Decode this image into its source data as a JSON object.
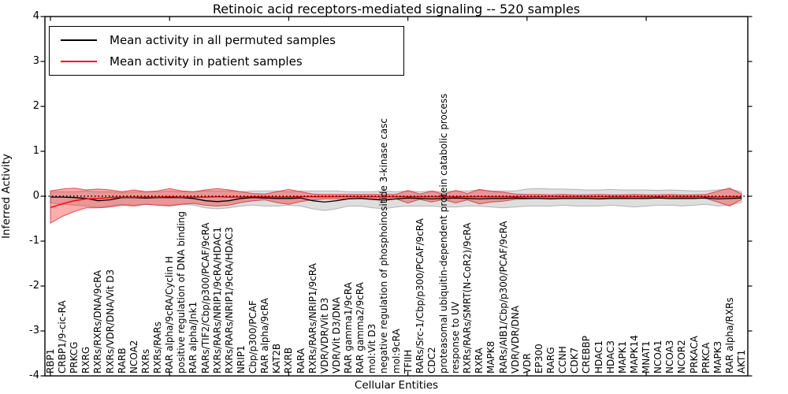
{
  "figure": {
    "title": "Retinoic acid receptors-mediated signaling -- 520 samples",
    "xlabel": "Cellular Entities",
    "ylabel": "Inferred Activity"
  },
  "legend": {
    "items": [
      {
        "label": "Mean activity in all permuted samples",
        "color": "#000000"
      },
      {
        "label": "Mean activity in patient samples",
        "color": "#ff0000"
      }
    ],
    "position": "upper left"
  },
  "colors": {
    "permuted_line": "#000000",
    "patient_line": "#ff0000",
    "permuted_band_fill": "rgba(0,0,0,0.13)",
    "permuted_band_edge": "rgba(110,110,110,0.45)",
    "patient_band_fill": "rgba(255,0,0,0.32)",
    "patient_band_edge": "rgba(205,40,40,0.75)",
    "axis": "#000000",
    "background": "#ffffff"
  },
  "chart_data": {
    "type": "line",
    "title": "Retinoic acid receptors-mediated signaling -- 520 samples",
    "xlabel": "Cellular Entities",
    "ylabel": "Inferred Activity",
    "ylim": [
      -4,
      4
    ],
    "yticks": [
      4,
      3,
      2,
      1,
      0,
      -1,
      -2,
      -3,
      -4
    ],
    "grid": false,
    "zero_reference_line": "dotted black at y=0",
    "legend_position": "upper left",
    "categories": [
      "RBP1",
      "CRBP1/9-cic-RA",
      "PRKCG",
      "RXRG",
      "RXRs/RXRs/DNA/9cRA",
      "RXRs/VDR/DNA/Vit D3",
      "RARB",
      "NCOA2",
      "RXRs",
      "RXRs/RARs",
      "RAR alpha/9cRA/Cyclin H",
      "positive regulation of DNA binding",
      "RAR alpha/Jnk1",
      "RARs/TIF2/Cbp/p300/PCAF/9cRA",
      "RXRs/RARs/NRIP1/9cRA/HDAC1",
      "RXRs/RARs/NRIP1/9cRA/HDAC3",
      "NRIP1",
      "Cbp/p300/PCAF",
      "RAR alpha/9cRA",
      "KAT2B",
      "RXRB",
      "RARA",
      "RXRs/RARs/NRIP1/9cRA",
      "VDR/VDR/Vit D3",
      "VDR/Vit D3/DNA",
      "RAR gamma1/9cRA",
      "RAR gamma2/9cRA",
      "mol:Vit D3",
      "negative regulation of phosphoinositide 3-kinase casc",
      "mol:9cRA",
      "TFIIH",
      "RARs/Src-1/Cbp/p300/PCAF/9cRA",
      "CDC2",
      "proteasomal ubiquitin-dependent protein catabolic process",
      "response to UV",
      "RXRs/RARs/SMRT(N-CoR2)/9cRA",
      "RXRA",
      "MAPK8",
      "RARs/AIB1/Cbp/p300/PCAF/9cRA",
      "VDR/VDR/DNA",
      "VDR",
      "EP300",
      "RARG",
      "CCNH",
      "CDK7",
      "CREBBP",
      "HDAC1",
      "HDAC3",
      "MAPK1",
      "MAPK14",
      "MNAT1",
      "NCOA1",
      "NCOA3",
      "NCOR2",
      "PRKACA",
      "PRKCA",
      "MAPK3",
      "RAR alpha/RXRs",
      "AKT1"
    ],
    "series": [
      {
        "name": "Mean activity in all permuted samples",
        "color": "#000000",
        "values": [
          -0.02,
          -0.02,
          -0.03,
          -0.05,
          -0.1,
          -0.08,
          -0.03,
          -0.03,
          -0.04,
          -0.03,
          -0.03,
          -0.03,
          -0.05,
          -0.1,
          -0.12,
          -0.1,
          -0.05,
          -0.03,
          -0.04,
          -0.05,
          -0.05,
          -0.04,
          -0.1,
          -0.13,
          -0.1,
          -0.06,
          -0.05,
          -0.07,
          -0.09,
          -0.06,
          -0.04,
          -0.05,
          -0.06,
          -0.05,
          -0.04,
          -0.05,
          -0.06,
          -0.05,
          -0.05,
          -0.04,
          -0.05,
          -0.05,
          -0.06,
          -0.05,
          -0.05,
          -0.05,
          -0.06,
          -0.05,
          -0.05,
          -0.05,
          -0.05,
          -0.04,
          -0.05,
          -0.05,
          -0.05,
          -0.04,
          -0.06,
          -0.05,
          -0.04
        ]
      },
      {
        "name": "Mean activity in patient samples",
        "color": "#ff0000",
        "values": [
          -0.25,
          -0.17,
          -0.1,
          -0.06,
          -0.05,
          -0.03,
          -0.02,
          -0.02,
          -0.02,
          -0.02,
          -0.01,
          -0.02,
          -0.02,
          -0.02,
          -0.01,
          -0.02,
          -0.02,
          -0.01,
          -0.01,
          -0.02,
          -0.02,
          -0.01,
          -0.01,
          -0.01,
          -0.01,
          -0.01,
          -0.01,
          -0.01,
          -0.01,
          -0.01,
          -0.01,
          -0.01,
          -0.01,
          -0.01,
          -0.01,
          -0.01,
          -0.01,
          -0.01,
          -0.01,
          -0.01,
          -0.01,
          -0.01,
          -0.01,
          -0.01,
          -0.01,
          -0.01,
          -0.01,
          -0.01,
          -0.01,
          -0.01,
          -0.01,
          -0.01,
          -0.01,
          -0.01,
          -0.01,
          -0.01,
          -0.02,
          -0.01,
          -0.01
        ]
      }
    ],
    "bands": [
      {
        "name": "permuted samples range",
        "fill": "rgba(0,0,0,0.13)",
        "upper": [
          0.1,
          0.1,
          0.1,
          0.12,
          0.1,
          0.1,
          0.08,
          0.1,
          0.1,
          0.1,
          0.12,
          0.1,
          0.1,
          0.12,
          0.12,
          0.12,
          0.1,
          0.12,
          0.12,
          0.12,
          0.1,
          0.12,
          0.12,
          0.12,
          0.12,
          0.1,
          0.1,
          0.1,
          0.12,
          0.1,
          0.12,
          0.1,
          0.12,
          0.1,
          0.12,
          0.12,
          0.14,
          0.12,
          0.12,
          0.12,
          0.16,
          0.17,
          0.16,
          0.16,
          0.15,
          0.14,
          0.14,
          0.15,
          0.14,
          0.14,
          0.14,
          0.13,
          0.14,
          0.13,
          0.12,
          0.12,
          0.14,
          0.16,
          0.1
        ],
        "lower": [
          -0.15,
          -0.18,
          -0.2,
          -0.22,
          -0.25,
          -0.22,
          -0.18,
          -0.2,
          -0.18,
          -0.2,
          -0.2,
          -0.18,
          -0.2,
          -0.26,
          -0.28,
          -0.26,
          -0.22,
          -0.2,
          -0.22,
          -0.22,
          -0.2,
          -0.22,
          -0.28,
          -0.32,
          -0.28,
          -0.22,
          -0.22,
          -0.26,
          -0.28,
          -0.24,
          -0.22,
          -0.22,
          -0.22,
          -0.24,
          -0.24,
          -0.22,
          -0.22,
          -0.24,
          -0.26,
          -0.24,
          -0.22,
          -0.22,
          -0.22,
          -0.2,
          -0.22,
          -0.22,
          -0.22,
          -0.2,
          -0.22,
          -0.24,
          -0.22,
          -0.2,
          -0.2,
          -0.22,
          -0.2,
          -0.18,
          -0.22,
          -0.2,
          -0.14
        ]
      },
      {
        "name": "patient samples range",
        "fill": "rgba(255,0,0,0.32)",
        "upper": [
          0.12,
          0.16,
          0.18,
          0.14,
          0.16,
          0.14,
          0.1,
          0.14,
          0.1,
          0.12,
          0.17,
          0.12,
          0.1,
          0.14,
          0.17,
          0.14,
          0.1,
          0.06,
          0.05,
          0.1,
          0.15,
          0.1,
          0.05,
          0.04,
          0.04,
          0.04,
          0.04,
          0.04,
          0.04,
          0.04,
          0.13,
          0.05,
          0.11,
          0.05,
          0.13,
          0.06,
          0.15,
          0.11,
          0.09,
          0.05,
          0.04,
          0.04,
          0.03,
          0.04,
          0.03,
          0.03,
          0.04,
          0.03,
          0.03,
          0.04,
          0.03,
          0.03,
          0.04,
          0.03,
          0.03,
          0.04,
          0.11,
          0.18,
          0.05
        ],
        "lower": [
          -0.6,
          -0.45,
          -0.34,
          -0.26,
          -0.26,
          -0.24,
          -0.2,
          -0.22,
          -0.18,
          -0.2,
          -0.22,
          -0.18,
          -0.16,
          -0.2,
          -0.22,
          -0.2,
          -0.14,
          -0.1,
          -0.08,
          -0.14,
          -0.18,
          -0.12,
          -0.08,
          -0.06,
          -0.06,
          -0.06,
          -0.05,
          -0.06,
          -0.06,
          -0.06,
          -0.15,
          -0.07,
          -0.13,
          -0.07,
          -0.15,
          -0.08,
          -0.17,
          -0.13,
          -0.11,
          -0.07,
          -0.06,
          -0.05,
          -0.05,
          -0.05,
          -0.05,
          -0.04,
          -0.05,
          -0.04,
          -0.04,
          -0.05,
          -0.04,
          -0.04,
          -0.05,
          -0.04,
          -0.04,
          -0.05,
          -0.13,
          -0.22,
          -0.07
        ]
      }
    ]
  }
}
